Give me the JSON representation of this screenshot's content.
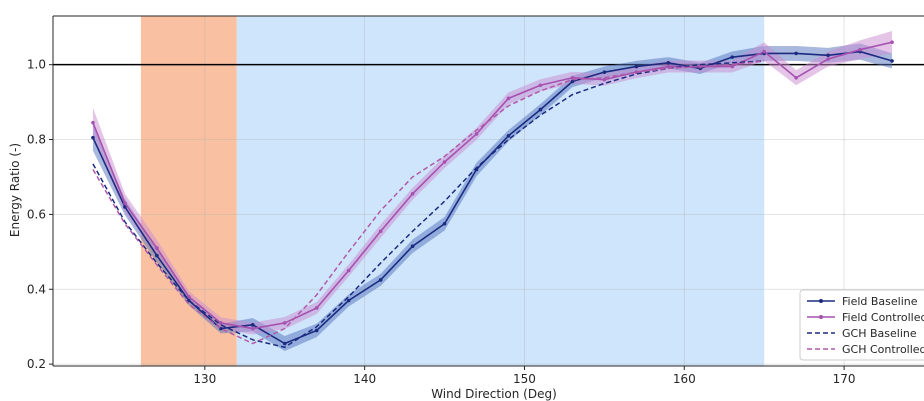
{
  "chart_data": {
    "type": "line",
    "title": "",
    "xlabel": "Wind Direction (Deg)",
    "ylabel": "Energy Ratio (-)",
    "xlim": [
      120.5,
      175
    ],
    "ylim": [
      0.195,
      1.13
    ],
    "x_ticks": [
      130,
      140,
      150,
      160,
      170
    ],
    "y_ticks": [
      0.2,
      0.4,
      0.6,
      0.8,
      1.0
    ],
    "x_tick_labels": [
      "130",
      "140",
      "150",
      "160",
      "170"
    ],
    "y_tick_labels": [
      "0.2",
      "0.4",
      "0.6",
      "0.8",
      "1.0"
    ],
    "grid": true,
    "reference_line": {
      "y": 1.0,
      "color": "#000000"
    },
    "shaded_regions": [
      {
        "x": [
          126,
          132
        ],
        "color": "#f9c1a2"
      },
      {
        "x": [
          132,
          165
        ],
        "color": "#cfe5fb"
      }
    ],
    "legend_position": "bottom-right",
    "series": [
      {
        "name": "Field Baseline",
        "style": "solid",
        "marker": true,
        "color": "#1c2b80",
        "band_color": "#5473bd",
        "x": [
          123,
          125,
          127,
          129,
          131,
          133,
          135,
          137,
          139,
          141,
          143,
          145,
          147,
          149,
          151,
          153,
          155,
          157,
          159,
          161,
          163,
          165,
          167,
          169,
          171,
          173
        ],
        "y": [
          0.805,
          0.62,
          0.49,
          0.37,
          0.295,
          0.305,
          0.255,
          0.29,
          0.37,
          0.425,
          0.515,
          0.575,
          0.72,
          0.81,
          0.88,
          0.955,
          0.98,
          0.995,
          1.005,
          0.99,
          1.02,
          1.03,
          1.03,
          1.025,
          1.035,
          1.01
        ],
        "band": [
          0.035,
          0.022,
          0.018,
          0.013,
          0.013,
          0.018,
          0.02,
          0.018,
          0.016,
          0.016,
          0.018,
          0.018,
          0.018,
          0.015,
          0.015,
          0.015,
          0.015,
          0.015,
          0.015,
          0.015,
          0.015,
          0.02,
          0.02,
          0.02,
          0.022,
          0.02
        ]
      },
      {
        "name": "Field Controlled",
        "style": "solid",
        "marker": true,
        "color": "#a652b0",
        "band_color": "#c98bcf",
        "x": [
          123,
          125,
          127,
          129,
          131,
          133,
          135,
          137,
          139,
          141,
          143,
          145,
          147,
          149,
          151,
          153,
          155,
          157,
          159,
          161,
          163,
          165,
          167,
          169,
          171,
          173
        ],
        "y": [
          0.845,
          0.63,
          0.51,
          0.38,
          0.31,
          0.295,
          0.31,
          0.35,
          0.45,
          0.555,
          0.655,
          0.74,
          0.815,
          0.91,
          0.945,
          0.965,
          0.96,
          0.98,
          0.995,
          0.995,
          0.995,
          1.035,
          0.965,
          1.015,
          1.04,
          1.06
        ],
        "band": [
          0.04,
          0.025,
          0.022,
          0.015,
          0.015,
          0.016,
          0.016,
          0.016,
          0.016,
          0.018,
          0.016,
          0.016,
          0.016,
          0.016,
          0.016,
          0.016,
          0.016,
          0.016,
          0.016,
          0.016,
          0.016,
          0.025,
          0.02,
          0.02,
          0.025,
          0.03
        ]
      },
      {
        "name": "GCH Baseline",
        "style": "dashed",
        "marker": false,
        "color": "#1c2b80",
        "x": [
          123,
          125,
          127,
          129,
          131,
          133,
          135,
          137,
          139,
          141,
          143,
          145,
          147,
          149,
          151,
          153,
          155,
          157,
          159,
          161,
          163,
          165
        ],
        "y": [
          0.735,
          0.58,
          0.47,
          0.37,
          0.305,
          0.265,
          0.245,
          0.3,
          0.38,
          0.47,
          0.555,
          0.635,
          0.725,
          0.8,
          0.865,
          0.92,
          0.95,
          0.975,
          0.99,
          1.0,
          1.005,
          1.01
        ]
      },
      {
        "name": "GCH Controlled",
        "style": "dashed",
        "marker": false,
        "color": "#b05aab",
        "x": [
          123,
          125,
          127,
          129,
          131,
          133,
          135,
          137,
          139,
          141,
          143,
          145,
          147,
          149,
          151,
          153,
          155,
          157,
          159,
          161,
          163,
          165
        ],
        "y": [
          0.72,
          0.575,
          0.465,
          0.36,
          0.295,
          0.255,
          0.295,
          0.385,
          0.5,
          0.61,
          0.7,
          0.755,
          0.825,
          0.89,
          0.93,
          0.96,
          0.965,
          0.98,
          0.99,
          0.995,
          1.0,
          1.01
        ]
      }
    ]
  }
}
